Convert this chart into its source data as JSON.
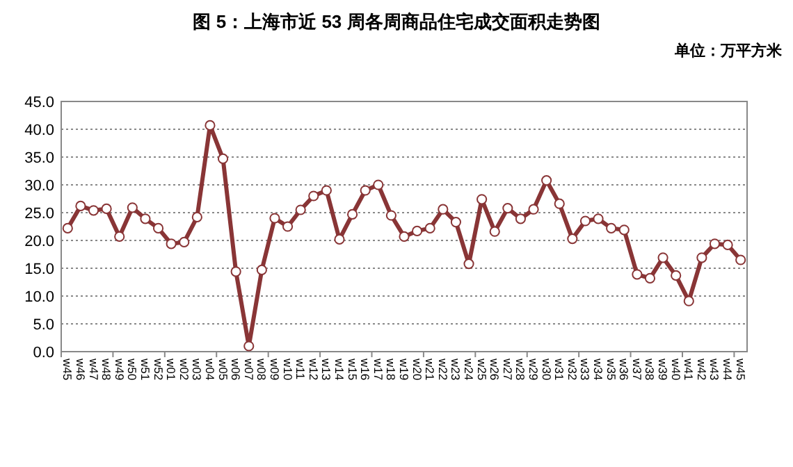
{
  "chart_data": {
    "type": "line",
    "title": "图 5：上海市近 53 周各周商品住宅成交面积走势图",
    "annotations": [
      "单位：万平方米"
    ],
    "categories": [
      "w45",
      "w46",
      "w47",
      "w48",
      "w49",
      "w50",
      "w51",
      "w52",
      "w01",
      "w02",
      "w03",
      "w04",
      "w05",
      "w06",
      "w07",
      "w08",
      "w09",
      "w10",
      "w11",
      "w12",
      "w13",
      "w14",
      "w15",
      "w16",
      "w17",
      "w18",
      "w19",
      "w20",
      "w21",
      "w22",
      "w23",
      "w24",
      "w25",
      "w26",
      "w27",
      "w28",
      "w29",
      "w30",
      "w31",
      "w32",
      "w33",
      "w34",
      "w35",
      "w36",
      "w37",
      "w38",
      "w39",
      "w40",
      "w41",
      "w42",
      "w43",
      "w44",
      "w45"
    ],
    "series": [
      {
        "color": "#893536",
        "values": [
          22.2,
          26.2,
          25.4,
          25.7,
          20.7,
          25.9,
          23.9,
          22.2,
          19.4,
          19.7,
          24.2,
          40.7,
          34.7,
          14.4,
          1.0,
          14.7,
          24.0,
          22.5,
          25.5,
          28.0,
          29.0,
          20.2,
          24.7,
          29.0,
          30.0,
          24.5,
          20.7,
          21.7,
          22.2,
          25.6,
          23.3,
          15.8,
          27.4,
          21.6,
          25.8,
          23.9,
          25.6,
          30.8,
          26.6,
          20.3,
          23.5,
          23.9,
          22.2,
          21.9,
          13.9,
          13.2,
          16.9,
          13.7,
          9.1,
          16.9,
          19.4,
          19.2,
          16.5
        ]
      }
    ],
    "ylim": [
      0,
      45
    ],
    "yticks": [
      {
        "value": 0,
        "label": "0.0"
      },
      {
        "value": 5,
        "label": "5.0"
      },
      {
        "value": 10,
        "label": "10.0"
      },
      {
        "value": 15,
        "label": "15.0"
      },
      {
        "value": 20,
        "label": "20.0"
      },
      {
        "value": 25,
        "label": "25.0"
      },
      {
        "value": 30,
        "label": "30.0"
      },
      {
        "value": 35,
        "label": "35.0"
      },
      {
        "value": 40,
        "label": "40.0"
      },
      {
        "value": 45,
        "label": "45.0"
      }
    ],
    "grid": "y",
    "marker": "circle",
    "line_style": "solid"
  }
}
